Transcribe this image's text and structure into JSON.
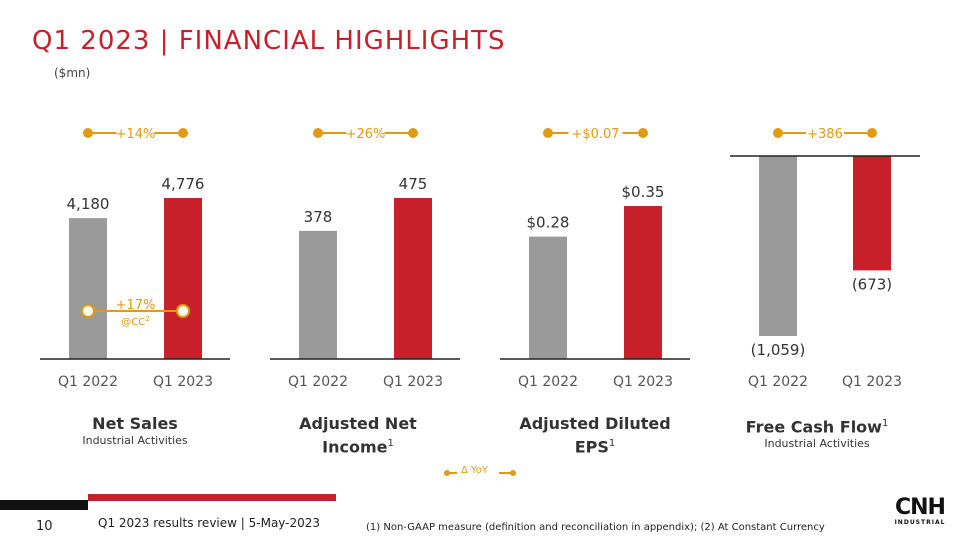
{
  "slide": {
    "title": "Q1 2023 | FINANCIAL HIGHLIGHTS",
    "unit": "($mn)",
    "legend": "Δ YoY",
    "page_number": "10",
    "review": "Q1 2023 results review | 5-May-2023",
    "footnote": "(1) Non-GAAP measure (definition and reconciliation in appendix); (2) At Constant Currency",
    "logo_text": "CNH",
    "logo_sub": "INDUSTRIAL"
  },
  "colors": {
    "accent": "#c8202a",
    "prior": "#9a9a9a",
    "delta": "#e09b12"
  },
  "chart_data": [
    {
      "type": "bar",
      "title": "Net Sales",
      "sup": "",
      "subtitle": "Industrial Activities",
      "categories": [
        "Q1 2022",
        "Q1 2023"
      ],
      "values": [
        4180,
        4776
      ],
      "labels": [
        "4,180",
        "4,776"
      ],
      "ylim": [
        0,
        5000
      ],
      "delta": "+14%",
      "extra_delta": "+17%",
      "extra_sub": "@CC",
      "extra_sup": "2"
    },
    {
      "type": "bar",
      "title": "Adjusted Net Income",
      "sup": "1",
      "subtitle": "",
      "categories": [
        "Q1 2022",
        "Q1 2023"
      ],
      "values": [
        378,
        475
      ],
      "labels": [
        "378",
        "475"
      ],
      "ylim": [
        0,
        500
      ],
      "delta": "+26%"
    },
    {
      "type": "bar",
      "title": "Adjusted Diluted EPS",
      "sup": "1",
      "subtitle": "",
      "categories": [
        "Q1 2022",
        "Q1 2023"
      ],
      "values": [
        0.28,
        0.35
      ],
      "labels": [
        "$0.28",
        "$0.35"
      ],
      "ylim": [
        0,
        0.4
      ],
      "delta": "+$0.07"
    },
    {
      "type": "bar",
      "title": "Free Cash Flow",
      "sup": "1",
      "subtitle": "Industrial Activities",
      "categories": [
        "Q1 2022",
        "Q1 2023"
      ],
      "values": [
        -1059,
        -673
      ],
      "labels": [
        "(1,059)",
        "(673)"
      ],
      "ylim": [
        -1059,
        0
      ],
      "delta": "+386"
    }
  ]
}
